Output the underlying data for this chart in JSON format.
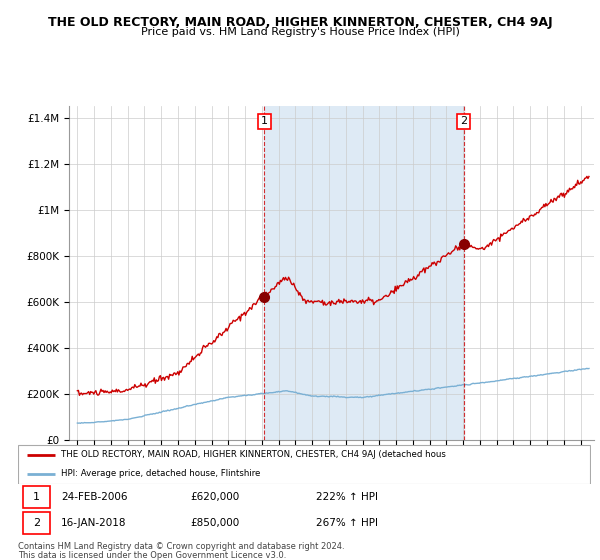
{
  "title": "THE OLD RECTORY, MAIN ROAD, HIGHER KINNERTON, CHESTER, CH4 9AJ",
  "subtitle": "Price paid vs. HM Land Registry's House Price Index (HPI)",
  "legend_line1": "THE OLD RECTORY, MAIN ROAD, HIGHER KINNERTON, CHESTER, CH4 9AJ (detached hous",
  "legend_line2": "HPI: Average price, detached house, Flintshire",
  "footnote1": "Contains HM Land Registry data © Crown copyright and database right 2024.",
  "footnote2": "This data is licensed under the Open Government Licence v3.0.",
  "transaction1_date": "24-FEB-2006",
  "transaction1_price": "£620,000",
  "transaction1_hpi": "222% ↑ HPI",
  "transaction2_date": "16-JAN-2018",
  "transaction2_price": "£850,000",
  "transaction2_hpi": "267% ↑ HPI",
  "vline1_x": 2006.15,
  "vline2_x": 2018.04,
  "marker1_x": 2006.15,
  "marker1_y": 620000,
  "marker2_x": 2018.04,
  "marker2_y": 850000,
  "ylim": [
    0,
    1450000
  ],
  "xlim": [
    1994.5,
    2025.8
  ],
  "yticks": [
    0,
    200000,
    400000,
    600000,
    800000,
    1000000,
    1200000,
    1400000
  ],
  "ytick_labels": [
    "£0",
    "£200K",
    "£400K",
    "£600K",
    "£800K",
    "£1M",
    "£1.2M",
    "£1.4M"
  ],
  "xticks": [
    1995,
    1996,
    1997,
    1998,
    1999,
    2000,
    2001,
    2002,
    2003,
    2004,
    2005,
    2006,
    2007,
    2008,
    2009,
    2010,
    2011,
    2012,
    2013,
    2014,
    2015,
    2016,
    2017,
    2018,
    2019,
    2020,
    2021,
    2022,
    2023,
    2024,
    2025
  ],
  "hpi_color": "#7ab0d4",
  "price_color": "#cc0000",
  "shade_color": "#deeaf5",
  "vline_color": "#cc0000",
  "background_color": "#ffffff",
  "grid_color": "#cccccc"
}
